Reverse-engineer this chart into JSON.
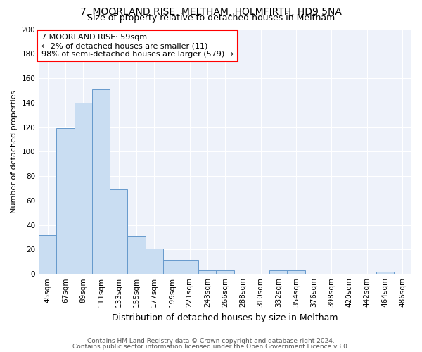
{
  "title1": "7, MOORLAND RISE, MELTHAM, HOLMFIRTH, HD9 5NA",
  "title2": "Size of property relative to detached houses in Meltham",
  "xlabel": "Distribution of detached houses by size in Meltham",
  "ylabel": "Number of detached properties",
  "categories": [
    "45sqm",
    "67sqm",
    "89sqm",
    "111sqm",
    "133sqm",
    "155sqm",
    "177sqm",
    "199sqm",
    "221sqm",
    "243sqm",
    "266sqm",
    "288sqm",
    "310sqm",
    "332sqm",
    "354sqm",
    "376sqm",
    "398sqm",
    "420sqm",
    "442sqm",
    "464sqm",
    "486sqm"
  ],
  "values": [
    32,
    119,
    140,
    151,
    69,
    31,
    21,
    11,
    11,
    3,
    3,
    0,
    0,
    3,
    3,
    0,
    0,
    0,
    0,
    2,
    0
  ],
  "bar_color": "#c9ddf2",
  "bar_edge_color": "#6699cc",
  "ylim": [
    0,
    200
  ],
  "yticks": [
    0,
    20,
    40,
    60,
    80,
    100,
    120,
    140,
    160,
    180,
    200
  ],
  "annotation_title": "7 MOORLAND RISE: 59sqm",
  "annotation_line1": "← 2% of detached houses are smaller (11)",
  "annotation_line2": "98% of semi-detached houses are larger (579) →",
  "red_line_x": -0.5,
  "footer1": "Contains HM Land Registry data © Crown copyright and database right 2024.",
  "footer2": "Contains public sector information licensed under the Open Government Licence v3.0.",
  "background_color": "#eef2fa",
  "grid_color": "#ffffff",
  "title1_fontsize": 10,
  "title2_fontsize": 9,
  "ylabel_fontsize": 8,
  "xlabel_fontsize": 9,
  "tick_fontsize": 7.5,
  "ann_fontsize": 8,
  "footer_fontsize": 6.5
}
